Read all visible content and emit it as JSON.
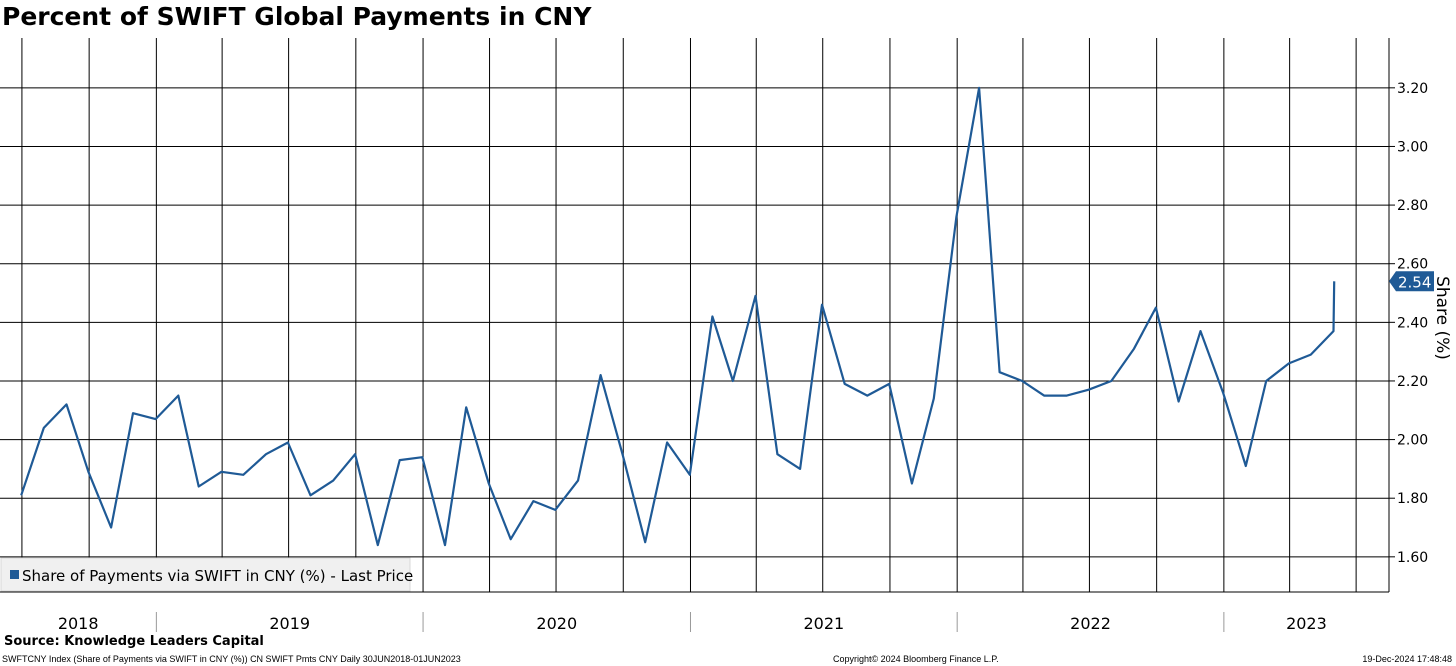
{
  "chart_data": {
    "type": "line",
    "title": "Percent of SWIFT Global Payments in CNY",
    "ylabel": "Share (%)",
    "ylim": [
      1.48,
      3.37
    ],
    "yticks": [
      1.6,
      1.8,
      2.0,
      2.2,
      2.4,
      2.6,
      2.8,
      3.0,
      3.2
    ],
    "ytick_labels": [
      "1.60",
      "1.80",
      "2.00",
      "2.20",
      "2.40",
      "2.60",
      "2.80",
      "3.00",
      "3.20"
    ],
    "xlim": [
      "2018-06-01",
      "2023-08-15"
    ],
    "year_labels": [
      "2018",
      "2019",
      "2020",
      "2021",
      "2022",
      "2023"
    ],
    "grid": true,
    "legend_position": "bottom-left",
    "last_value_label": "2.54",
    "series": [
      {
        "name": "Share of Payments via SWIFT in CNY (%) - Last Price",
        "color": "#1f5a96",
        "x": [
          "2018-06-30",
          "2018-07-31",
          "2018-08-31",
          "2018-09-30",
          "2018-10-31",
          "2018-11-30",
          "2018-12-31",
          "2019-01-31",
          "2019-02-28",
          "2019-03-31",
          "2019-04-30",
          "2019-05-31",
          "2019-06-30",
          "2019-07-31",
          "2019-08-31",
          "2019-09-30",
          "2019-10-31",
          "2019-11-30",
          "2019-12-31",
          "2020-01-31",
          "2020-02-29",
          "2020-03-31",
          "2020-04-30",
          "2020-05-31",
          "2020-06-30",
          "2020-07-31",
          "2020-08-31",
          "2020-09-30",
          "2020-10-31",
          "2020-11-30",
          "2020-12-31",
          "2021-01-31",
          "2021-02-28",
          "2021-03-31",
          "2021-04-30",
          "2021-05-31",
          "2021-06-30",
          "2021-07-31",
          "2021-08-31",
          "2021-09-30",
          "2021-10-31",
          "2021-11-30",
          "2021-12-31",
          "2022-01-31",
          "2022-02-28",
          "2022-03-31",
          "2022-04-30",
          "2022-05-31",
          "2022-06-30",
          "2022-07-31",
          "2022-08-31",
          "2022-09-30",
          "2022-10-31",
          "2022-11-30",
          "2022-12-31",
          "2023-01-31",
          "2023-02-28",
          "2023-03-31",
          "2023-04-30",
          "2023-05-31",
          "2023-06-01"
        ],
        "values": [
          1.81,
          2.04,
          2.12,
          1.89,
          1.7,
          2.09,
          2.07,
          2.15,
          1.84,
          1.89,
          1.88,
          1.95,
          1.99,
          1.81,
          1.86,
          1.95,
          1.64,
          1.93,
          1.94,
          1.64,
          2.11,
          1.85,
          1.66,
          1.79,
          1.76,
          1.86,
          2.22,
          1.95,
          1.65,
          1.99,
          1.88,
          2.42,
          2.2,
          2.49,
          1.95,
          1.9,
          2.46,
          2.19,
          2.15,
          2.19,
          1.85,
          2.14,
          2.76,
          3.2,
          2.23,
          2.2,
          2.15,
          2.15,
          2.17,
          2.2,
          2.31,
          2.45,
          2.13,
          2.37,
          2.16,
          1.91,
          2.2,
          2.26,
          2.29,
          2.37,
          2.54
        ]
      }
    ]
  },
  "source": "Source: Knowledge Leaders Capital",
  "footer": {
    "left": "SWFTCNY Index (Share of Payments via SWIFT in CNY (%)) CN SWIFT Pmts CNY  Daily 30JUN2018-01JUN2023",
    "center": "Copyright© 2024 Bloomberg Finance L.P.",
    "right": "19-Dec-2024 17:48:48"
  }
}
